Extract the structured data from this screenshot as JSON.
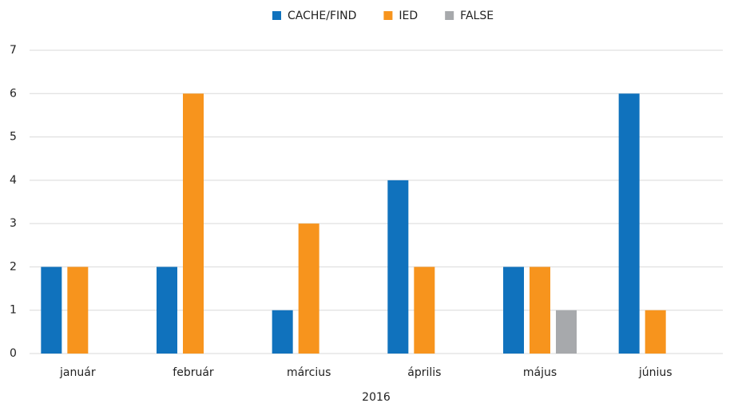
{
  "chart_data": {
    "type": "bar",
    "x_label": "2016",
    "categories": [
      "január",
      "február",
      "március",
      "április",
      "május",
      "június"
    ],
    "series": [
      {
        "name": "CACHE/FIND",
        "color": "#1072bd",
        "values": [
          2,
          2,
          1,
          4,
          2,
          6
        ]
      },
      {
        "name": "IED",
        "color": "#f7941d",
        "values": [
          2,
          6,
          3,
          2,
          2,
          1
        ]
      },
      {
        "name": "FALSE",
        "color": "#a7a9ac",
        "values": [
          0,
          0,
          0,
          0,
          1,
          0
        ]
      }
    ],
    "ylim": [
      0,
      7
    ],
    "yticks": [
      0,
      1,
      2,
      3,
      4,
      5,
      6,
      7
    ],
    "grid": true,
    "legend": "top"
  }
}
